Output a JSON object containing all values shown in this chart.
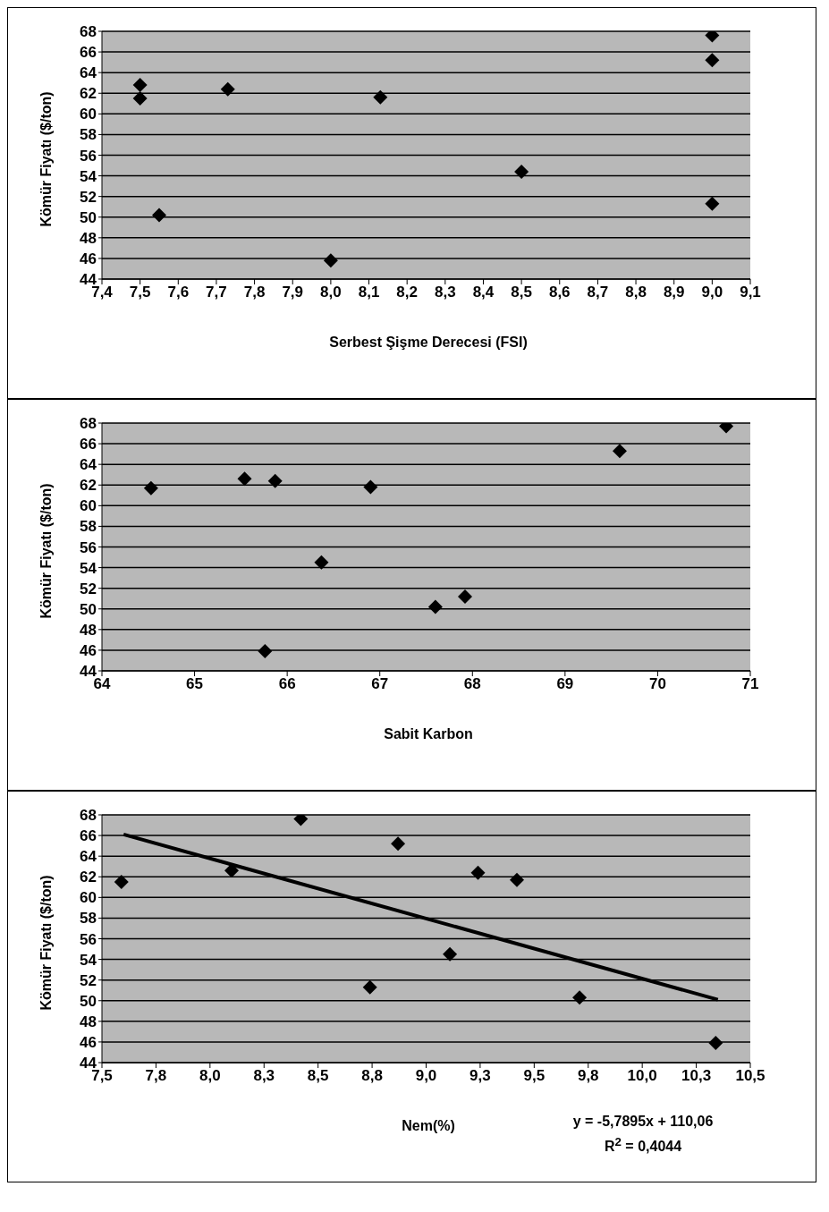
{
  "chart_data": [
    {
      "type": "scatter",
      "xlabel": "Serbest Şişme Derecesi (FSI)",
      "ylabel": "Kömür Fiyatı ($/ton)",
      "marker": "diamond",
      "grid": "y",
      "series": [
        {
          "color": "#000000",
          "x": [
            7.5,
            7.5,
            7.55,
            7.73,
            8.0,
            8.13,
            8.5,
            9.0,
            9.0,
            9.0
          ],
          "values": [
            62.8,
            61.5,
            50.2,
            62.4,
            45.8,
            61.6,
            54.4,
            67.6,
            65.2,
            51.3
          ]
        }
      ],
      "xlim": [
        7.4,
        9.1
      ],
      "ylim": [
        44,
        68
      ],
      "xticks": [
        {
          "value": 7.4,
          "label": "7,4"
        },
        {
          "value": 7.5,
          "label": "7,5"
        },
        {
          "value": 7.6,
          "label": "7,6"
        },
        {
          "value": 7.7,
          "label": "7,7"
        },
        {
          "value": 7.8,
          "label": "7,8"
        },
        {
          "value": 7.9,
          "label": "7,9"
        },
        {
          "value": 8.0,
          "label": "8,0"
        },
        {
          "value": 8.1,
          "label": "8,1"
        },
        {
          "value": 8.2,
          "label": "8,2"
        },
        {
          "value": 8.3,
          "label": "8,3"
        },
        {
          "value": 8.4,
          "label": "8,4"
        },
        {
          "value": 8.5,
          "label": "8,5"
        },
        {
          "value": 8.6,
          "label": "8,6"
        },
        {
          "value": 8.7,
          "label": "8,7"
        },
        {
          "value": 8.8,
          "label": "8,8"
        },
        {
          "value": 8.9,
          "label": "8,9"
        },
        {
          "value": 9.0,
          "label": "9,0"
        },
        {
          "value": 9.1,
          "label": "9,1"
        }
      ],
      "yticks": [
        44,
        46,
        48,
        50,
        52,
        54,
        56,
        58,
        60,
        62,
        64,
        66,
        68
      ]
    },
    {
      "type": "scatter",
      "xlabel": "Sabit Karbon",
      "ylabel": "Kömür Fiyatı ($/ton)",
      "marker": "diamond",
      "grid": "y",
      "series": [
        {
          "color": "#000000",
          "x": [
            64.53,
            65.54,
            65.87,
            65.76,
            66.37,
            66.9,
            67.6,
            67.92,
            69.59,
            70.74
          ],
          "values": [
            61.7,
            62.6,
            62.4,
            45.9,
            54.5,
            61.8,
            50.2,
            51.2,
            65.3,
            67.7
          ]
        }
      ],
      "xlim": [
        64,
        71
      ],
      "ylim": [
        44,
        68
      ],
      "xticks": [
        64,
        65,
        66,
        67,
        68,
        69,
        70,
        71
      ],
      "yticks": [
        44,
        46,
        48,
        50,
        52,
        54,
        56,
        58,
        60,
        62,
        64,
        66,
        68
      ]
    },
    {
      "type": "scatter",
      "xlabel": "Nem(%)",
      "ylabel": "Kömür Fiyatı ($/ton)",
      "marker": "diamond",
      "grid": "y",
      "series": [
        {
          "color": "#000000",
          "x": [
            7.59,
            8.1,
            8.42,
            8.74,
            8.87,
            9.11,
            9.24,
            9.42,
            9.71,
            10.34
          ],
          "values": [
            61.5,
            62.6,
            67.6,
            51.3,
            65.2,
            54.5,
            62.4,
            61.7,
            50.3,
            45.9
          ]
        },
        {
          "type": "line",
          "marker": "none",
          "color": "#000000",
          "x": [
            7.6,
            10.35
          ],
          "values": [
            66.1,
            50.1
          ]
        }
      ],
      "xlim": [
        7.5,
        10.5
      ],
      "ylim": [
        44,
        68
      ],
      "xticks": [
        {
          "value": 7.5,
          "label": "7,5"
        },
        {
          "value": 7.75,
          "label": "7,8"
        },
        {
          "value": 8.0,
          "label": "8,0"
        },
        {
          "value": 8.25,
          "label": "8,3"
        },
        {
          "value": 8.5,
          "label": "8,5"
        },
        {
          "value": 8.75,
          "label": "8,8"
        },
        {
          "value": 9.0,
          "label": "9,0"
        },
        {
          "value": 9.25,
          "label": "9,3"
        },
        {
          "value": 9.5,
          "label": "9,5"
        },
        {
          "value": 9.75,
          "label": "9,8"
        },
        {
          "value": 10.0,
          "label": "10,0"
        },
        {
          "value": 10.25,
          "label": "10,3"
        },
        {
          "value": 10.5,
          "label": "10,5"
        }
      ],
      "yticks": [
        44,
        46,
        48,
        50,
        52,
        54,
        56,
        58,
        60,
        62,
        64,
        66,
        68
      ],
      "annotations": [
        "y = -5,7895x + 110,06",
        "R$^{2}$ = 0,4044"
      ]
    }
  ]
}
